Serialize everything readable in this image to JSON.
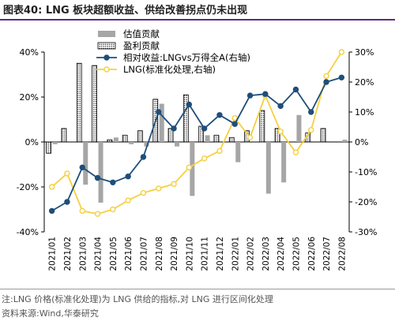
{
  "title": "图表40:  LNG 板块超额收益、供给改善拐点仍未出现",
  "chart_data": {
    "type": "bar+line",
    "categories": [
      "2021/01",
      "2021/02",
      "2021/03",
      "2021/04",
      "2021/05",
      "2021/06",
      "2021/07",
      "2021/08",
      "2021/09",
      "2021/10",
      "2021/11",
      "2021/12",
      "2022/01",
      "2022/02",
      "2022/03",
      "2022/04",
      "2022/05",
      "2022/06",
      "2022/07",
      "2022/08"
    ],
    "left_axis": {
      "min": -40,
      "max": 40,
      "ticks": [
        -40,
        -20,
        0,
        20,
        40
      ],
      "unit": "%"
    },
    "right_axis": {
      "min": -30,
      "max": 30,
      "ticks": [
        -30,
        -20,
        -10,
        0,
        10,
        20,
        30
      ],
      "unit": "%"
    },
    "legend_position": "top-center",
    "series": [
      {
        "name": "估值贡献",
        "type": "bar",
        "axis": "left",
        "color": "#a6a6a6",
        "values": [
          -1,
          0,
          -19,
          -27,
          2,
          -1,
          -2,
          17,
          -2,
          -24,
          3,
          0,
          -9,
          0,
          -23,
          -18,
          12,
          0,
          0,
          1
        ]
      },
      {
        "name": "盈利贡献",
        "type": "bar-dotted",
        "axis": "left",
        "color": "#000000",
        "values": [
          -5,
          6,
          35,
          34,
          1,
          3,
          5,
          19,
          6,
          21,
          7,
          3,
          2,
          5,
          14,
          6,
          0,
          4,
          6,
          0
        ]
      },
      {
        "name": "相对收益:LNGvs万得全A(右轴)",
        "type": "line",
        "axis": "right",
        "color": "#1f4e79",
        "values": [
          -23,
          -20,
          -8.5,
          -12,
          -13.5,
          -11.5,
          -5,
          10,
          4.5,
          12.5,
          4.5,
          9,
          6,
          15.5,
          16,
          12,
          17.5,
          10,
          20,
          21.5
        ]
      },
      {
        "name": "LNG(标准化处理,右轴)",
        "type": "line",
        "axis": "right",
        "color": "#f5d040",
        "values": [
          -15,
          -10.5,
          -23,
          -24,
          -22.5,
          -19.5,
          -17,
          -15.5,
          -14,
          -8.5,
          -5.5,
          -3,
          8,
          1.5,
          15.5,
          3.5,
          -3.5,
          4,
          22,
          30
        ]
      }
    ],
    "notes": [
      "注:LNG 价格(标准化处理)为 LNG 供给的指标,对 LNG 进行区间化处理",
      "资料来源:Wind,华泰研究"
    ]
  }
}
